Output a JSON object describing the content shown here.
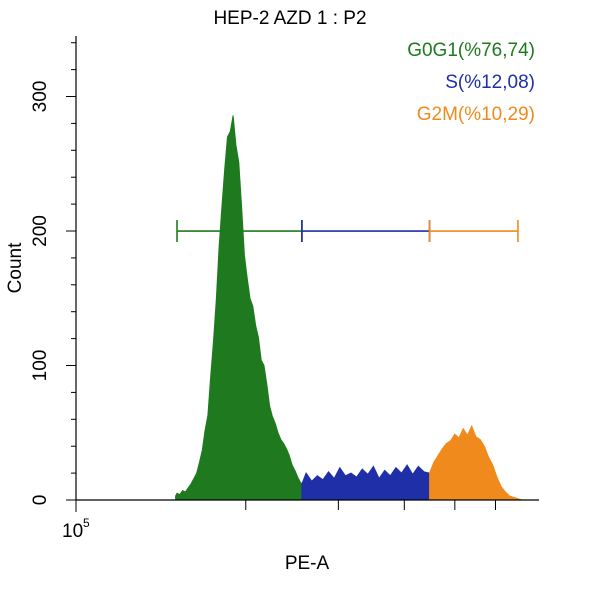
{
  "chart_data": {
    "type": "area",
    "title": "HEP-2 AZD 1 : P2",
    "xlabel": "PE-A",
    "ylabel": "Count",
    "ylim": [
      0,
      345
    ],
    "y_ticks": [
      0,
      100,
      200,
      300
    ],
    "x_tick_label_main": "10",
    "x_tick_label_exp": "5",
    "legend_position": "top-right",
    "colors": {
      "g0g1": "#1f7a1f",
      "s": "#1f2fa8",
      "g2m": "#f08a1c",
      "axis": "#000000"
    },
    "series": [
      {
        "name": "G0G1",
        "label": "G0G1(%76,74)",
        "color_key": "g0g1",
        "gate": [
          72,
          161
        ],
        "x": [
          71,
          72,
          74,
          76,
          78,
          80,
          82,
          84,
          86,
          88,
          90,
          92,
          94,
          96,
          98,
          100,
          102,
          104,
          106,
          108,
          110,
          112,
          114,
          116,
          118,
          120,
          122,
          124,
          126,
          128,
          130,
          132,
          134,
          136,
          138,
          140,
          142,
          144,
          146,
          148,
          150,
          152,
          154,
          156,
          158,
          160,
          161
        ],
        "values": [
          3,
          5,
          4,
          7,
          6,
          9,
          12,
          16,
          20,
          28,
          37,
          52,
          63,
          92,
          118,
          149,
          188,
          218,
          246,
          270,
          274,
          286,
          264,
          251,
          218,
          182,
          165,
          150,
          144,
          130,
          121,
          104,
          100,
          86,
          70,
          62,
          57,
          50,
          45,
          42,
          38,
          33,
          26,
          22,
          17,
          13,
          12
        ]
      },
      {
        "name": "S",
        "label": "S(%12,08)",
        "color_key": "s",
        "gate": [
          161,
          252
        ],
        "x": [
          161,
          164,
          168,
          172,
          176,
          180,
          184,
          188,
          192,
          196,
          200,
          204,
          208,
          212,
          216,
          220,
          224,
          228,
          232,
          236,
          240,
          244,
          248,
          252
        ],
        "values": [
          12,
          20,
          14,
          18,
          15,
          21,
          16,
          24,
          18,
          20,
          17,
          23,
          19,
          25,
          16,
          22,
          18,
          24,
          20,
          26,
          19,
          25,
          21,
          20
        ]
      },
      {
        "name": "G2M",
        "label": "G2M(%10,29)",
        "color_key": "g2m",
        "gate": [
          252,
          315
        ],
        "x": [
          252,
          255,
          258,
          261,
          264,
          267,
          270,
          273,
          276,
          279,
          282,
          285,
          288,
          291,
          294,
          297,
          300,
          303,
          306,
          309,
          312,
          315,
          318
        ],
        "values": [
          20,
          28,
          33,
          38,
          42,
          44,
          49,
          46,
          53,
          48,
          55,
          47,
          45,
          40,
          32,
          26,
          17,
          10,
          6,
          3,
          2,
          1,
          0
        ]
      }
    ]
  }
}
